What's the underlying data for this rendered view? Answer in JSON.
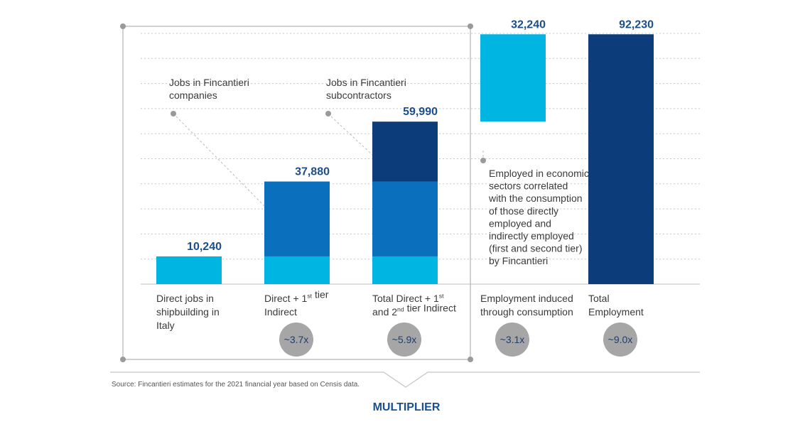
{
  "chart_data": {
    "type": "bar",
    "title": "",
    "xlabel": "",
    "ylabel": "",
    "ylim": [
      0,
      100000
    ],
    "grid": true,
    "categories": [
      [
        "Direct jobs in",
        "shipbuilding in",
        "Italy"
      ],
      [
        "Direct + 1st tier",
        "Indirect"
      ],
      [
        "Total Direct + 1st",
        "and 2nd tier Indirect"
      ],
      [
        "Employment induced",
        "through consumption"
      ],
      [
        "Total",
        "Employment"
      ]
    ],
    "bars": [
      {
        "total_label": "10,240",
        "segments": [
          {
            "from": 0,
            "to": 10240,
            "color": "#00b5e2"
          }
        ]
      },
      {
        "total_label": "37,880",
        "segments": [
          {
            "from": 0,
            "to": 10240,
            "color": "#00b5e2"
          },
          {
            "from": 10240,
            "to": 37880,
            "color": "#0a6fbd"
          }
        ]
      },
      {
        "total_label": "59,990",
        "segments": [
          {
            "from": 0,
            "to": 10240,
            "color": "#00b5e2"
          },
          {
            "from": 10240,
            "to": 37880,
            "color": "#0a6fbd"
          },
          {
            "from": 37880,
            "to": 59990,
            "color": "#0c3d7a"
          }
        ]
      },
      {
        "total_label": "32,240",
        "segments": [
          {
            "from": 59990,
            "to": 92230,
            "color": "#00b5e2"
          }
        ]
      },
      {
        "total_label": "92,230",
        "segments": [
          {
            "from": 0,
            "to": 92230,
            "color": "#0c3d7a"
          }
        ]
      }
    ],
    "multipliers": [
      "",
      "~3.7x",
      "~5.9x",
      "~3.1x",
      "~9.0x"
    ],
    "annotations": [
      {
        "lines": [
          "Jobs in Fincantieri",
          "companies"
        ]
      },
      {
        "lines": [
          "Jobs in Fincantieri",
          "subcontractors"
        ]
      },
      {
        "lines": [
          "Employed in economic",
          "sectors correlated",
          "with the consumption",
          "of those directly",
          "employed and",
          "indirectly employed",
          "(first and second tier)",
          "by Fincantieri"
        ]
      }
    ],
    "bracket_label": "MULTIPLIER",
    "source": "Source: Fincantieri estimates for the 2021 financial year based on Censis data.",
    "colors": {
      "light": "#00b5e2",
      "mid": "#0a6fbd",
      "dark": "#0c3d7a",
      "label": "#1a4f8c",
      "bubble": "#a6a6a6",
      "grid": "#c8c8c8"
    }
  }
}
